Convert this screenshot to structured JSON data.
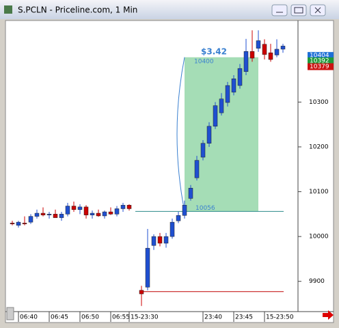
{
  "window": {
    "title": "S.PCLN - Priceline.com, 1 Min"
  },
  "chart_data": {
    "type": "candlestick",
    "categories": [
      null,
      null,
      null,
      "06:40",
      null,
      null,
      null,
      null,
      "06:45",
      null,
      null,
      null,
      null,
      "06:50",
      null,
      null,
      null,
      null,
      "06:55",
      null,
      null,
      "15-23:30",
      null,
      null,
      null,
      null,
      null,
      null,
      null,
      null,
      null,
      null,
      null,
      "23:40",
      null,
      null,
      null,
      null,
      "23:45",
      null,
      null,
      null,
      null,
      "15-23:50",
      null
    ],
    "open": [
      10030,
      10025,
      10030,
      10032,
      10045,
      10052,
      10048,
      10050,
      10042,
      10050,
      10068,
      10060,
      10066,
      10048,
      10052,
      10046,
      10055,
      10050,
      10062,
      10070,
      null,
      9880,
      9887,
      9980,
      10000,
      9985,
      10000,
      10035,
      10047,
      10085,
      10131,
      10177,
      10208,
      10246,
      10276,
      10299,
      10322,
      10337,
      10368,
      10413,
      10420,
      10429,
      10410,
      10405,
      10418
    ],
    "high": [
      10035,
      10035,
      10045,
      10050,
      10060,
      10065,
      10055,
      10060,
      10055,
      10075,
      10078,
      10072,
      10070,
      10058,
      10060,
      10058,
      10065,
      10068,
      10075,
      10072,
      null,
      9890,
      10017,
      10005,
      10008,
      10008,
      10040,
      10055,
      10080,
      10115,
      10180,
      10215,
      10255,
      10300,
      10320,
      10345,
      10360,
      10385,
      10441,
      10460,
      10460,
      10440,
      10430,
      10440,
      10430
    ],
    "low": [
      10025,
      10020,
      10025,
      10028,
      10040,
      10045,
      10040,
      10045,
      10035,
      10045,
      10055,
      10050,
      10040,
      10040,
      10044,
      10040,
      10048,
      10045,
      10055,
      10058,
      null,
      9845,
      9880,
      9970,
      9978,
      9975,
      9995,
      10030,
      10040,
      10080,
      10125,
      10170,
      10200,
      10240,
      10270,
      10290,
      10315,
      10330,
      10360,
      10390,
      10412,
      10395,
      10390,
      10400,
      10410
    ],
    "close": [
      10028,
      10032,
      10028,
      10045,
      10052,
      10048,
      10050,
      10042,
      10050,
      10068,
      10060,
      10066,
      10048,
      10052,
      10046,
      10055,
      10050,
      10062,
      10070,
      10062,
      null,
      9872,
      9974,
      10000,
      9985,
      10000,
      10032,
      10047,
      10070,
      10108,
      10170,
      10208,
      10246,
      10292,
      10307,
      10337,
      10352,
      10375,
      10413,
      10398,
      10437,
      10406,
      10395,
      10418,
      10425
    ],
    "up_color": "#1f4fd0",
    "down_color": "#cc0000",
    "ylim": [
      9834,
      10482
    ],
    "yticks": [
      9900,
      10000,
      10100,
      10200,
      10300
    ],
    "range_box": {
      "low": 10056,
      "high": 10400,
      "label": "$3.42",
      "color": "#8fd4a4"
    },
    "price_markers": [
      {
        "value": 10404,
        "color": "#1e6fd6"
      },
      {
        "value": 10392,
        "color": "#1f9a3a"
      },
      {
        "value": 10379,
        "color": "#cc1111"
      }
    ],
    "hlines": [
      {
        "value": 10056,
        "color": "#2a8a8a"
      },
      {
        "value": 9877,
        "color": "#c00000"
      }
    ]
  }
}
